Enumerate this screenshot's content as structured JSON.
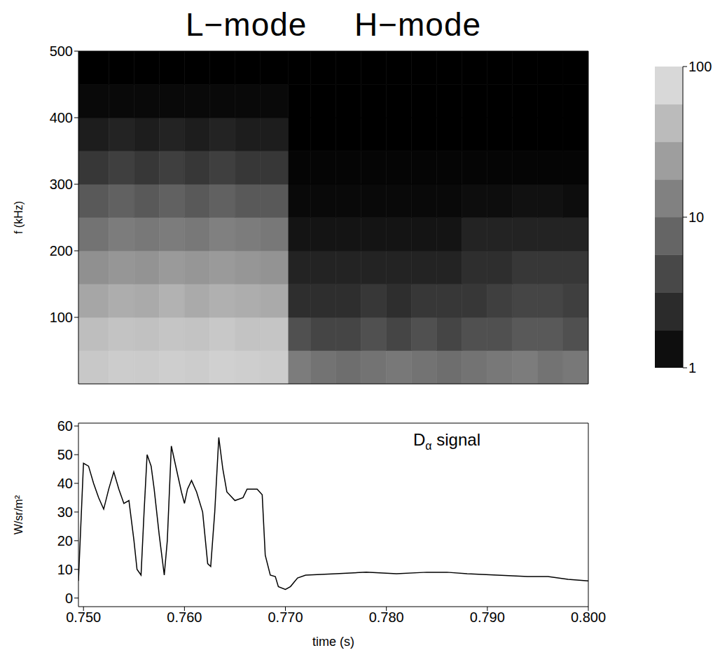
{
  "chart_data": [
    {
      "type": "heatmap",
      "title": "L−mode  H−mode",
      "y_label": "f (kHz)",
      "tick_labels": "y",
      "xlim": [
        0.7495,
        0.8
      ],
      "ylim": [
        0,
        500
      ],
      "yticks": [
        100,
        200,
        300,
        400,
        500
      ],
      "x_edges": [
        0.7495,
        0.7525,
        0.755,
        0.7575,
        0.76,
        0.7625,
        0.765,
        0.7675,
        0.7703,
        0.7725,
        0.775,
        0.7775,
        0.78,
        0.7825,
        0.785,
        0.7875,
        0.79,
        0.7925,
        0.795,
        0.7975,
        0.8
      ],
      "y_edges": [
        0,
        50,
        100,
        150,
        200,
        250,
        300,
        350,
        400,
        450,
        500
      ],
      "cells": [
        [
          55,
          60,
          58,
          62,
          60,
          65,
          62,
          60,
          12,
          10,
          9,
          10,
          11,
          10,
          9,
          10,
          11,
          12,
          10,
          11
        ],
        [
          45,
          50,
          48,
          52,
          50,
          55,
          50,
          52,
          5,
          4,
          4,
          5,
          4,
          5,
          4,
          5,
          5,
          6,
          6,
          5
        ],
        [
          28,
          32,
          30,
          35,
          30,
          34,
          32,
          30,
          2.5,
          2.5,
          2.5,
          3,
          2.5,
          3,
          3,
          3,
          3.5,
          4,
          4,
          3.5
        ],
        [
          18,
          20,
          19,
          22,
          20,
          22,
          20,
          19,
          2,
          2,
          2,
          2,
          2,
          2,
          2,
          2.5,
          2.5,
          3,
          3,
          3
        ],
        [
          10,
          12,
          11,
          12,
          11,
          13,
          12,
          11,
          1.5,
          1.5,
          1.5,
          1.5,
          1.5,
          1.5,
          1.5,
          2,
          2,
          2,
          2,
          2
        ],
        [
          6,
          7,
          6,
          7,
          6,
          7,
          6,
          6,
          1.2,
          1.2,
          1.2,
          1.2,
          1.2,
          1.2,
          1.2,
          1.3,
          1.3,
          1.4,
          1.4,
          1.3
        ],
        [
          3,
          3.5,
          3,
          3.5,
          3,
          3.5,
          3,
          3,
          1.1,
          1.1,
          1.1,
          1.1,
          1.1,
          1.1,
          1.1,
          1.1,
          1.1,
          1.1,
          1.1,
          1.1
        ],
        [
          1.8,
          2,
          1.8,
          2,
          1.8,
          2,
          1.8,
          1.8,
          1,
          1,
          1,
          1,
          1,
          1,
          1,
          1,
          1,
          1,
          1,
          1
        ],
        [
          1.2,
          1.2,
          1.2,
          1.2,
          1.2,
          1.2,
          1.2,
          1.2,
          1,
          1,
          1,
          1,
          1,
          1,
          1,
          1,
          1,
          1,
          1,
          1
        ],
        [
          1,
          1,
          1,
          1,
          1,
          1,
          1,
          1,
          1,
          1,
          1,
          1,
          1,
          1,
          1,
          1,
          1,
          1,
          1,
          1
        ]
      ],
      "colorbar": {
        "range": [
          1,
          100
        ],
        "ticks": [
          1,
          10,
          100
        ],
        "log": true
      }
    },
    {
      "type": "line",
      "annotation": "Dα signal",
      "x_label": "time (s)",
      "y_label": "W/sr/m²",
      "color": "#000000",
      "xlim": [
        0.7495,
        0.8
      ],
      "xticks": [
        {
          "value": 0.75,
          "label": "0.750"
        },
        {
          "value": 0.76,
          "label": "0.760"
        },
        {
          "value": 0.77,
          "label": "0.770"
        },
        {
          "value": 0.78,
          "label": "0.780"
        },
        {
          "value": 0.79,
          "label": "0.790"
        },
        {
          "value": 0.8,
          "label": "0.800"
        }
      ],
      "ylim": [
        -3,
        61
      ],
      "yticks": [
        0,
        10,
        20,
        30,
        40,
        50,
        60
      ],
      "x": [
        0.7495,
        0.75,
        0.7505,
        0.751,
        0.7515,
        0.752,
        0.7525,
        0.753,
        0.7535,
        0.754,
        0.7545,
        0.755,
        0.7553,
        0.7557,
        0.756,
        0.7563,
        0.7567,
        0.757,
        0.7575,
        0.758,
        0.7583,
        0.7587,
        0.7592,
        0.7597,
        0.76,
        0.7603,
        0.7607,
        0.7612,
        0.7618,
        0.7623,
        0.7626,
        0.763,
        0.7634,
        0.7638,
        0.7642,
        0.765,
        0.7658,
        0.7662,
        0.7666,
        0.7672,
        0.7677,
        0.768,
        0.7685,
        0.769,
        0.7693,
        0.77,
        0.7705,
        0.7712,
        0.772,
        0.775,
        0.778,
        0.781,
        0.784,
        0.786,
        0.788,
        0.791,
        0.794,
        0.796,
        0.798,
        0.8
      ],
      "values": [
        6,
        47,
        46,
        40,
        35,
        31,
        38,
        44,
        38,
        33,
        34,
        20,
        10,
        8,
        30,
        50,
        46,
        38,
        22,
        8,
        20,
        53,
        45,
        37,
        33,
        38,
        41,
        37,
        30,
        12,
        11,
        30,
        56,
        45,
        37,
        34,
        35,
        38,
        38,
        38,
        36,
        15,
        8,
        7.5,
        4,
        3,
        4,
        7,
        8,
        8.5,
        9,
        8.5,
        9,
        9,
        8.5,
        8,
        7.5,
        7.5,
        6.5,
        6
      ]
    }
  ]
}
